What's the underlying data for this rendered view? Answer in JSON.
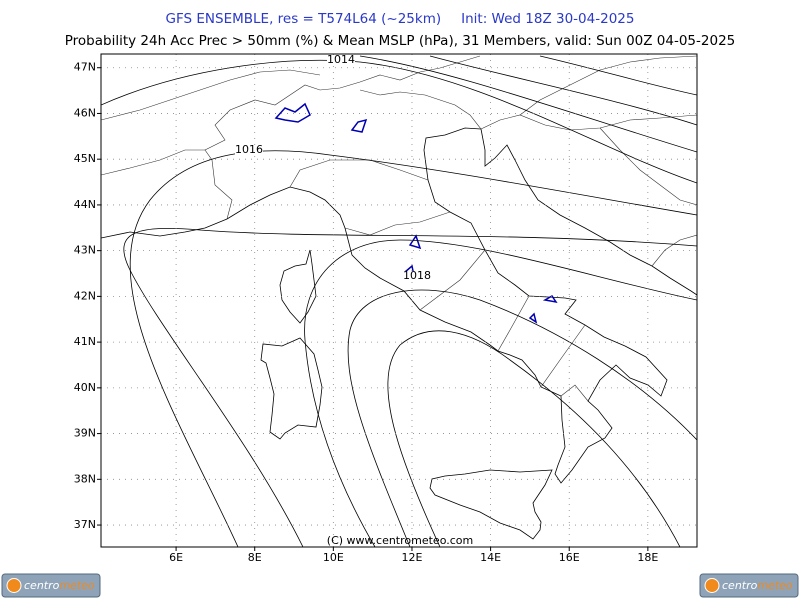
{
  "header": {
    "model": "GFS ENSEMBLE, res = T574L64 (~25km)",
    "init": "Init: Wed 18Z 30-04-2025",
    "subtitle": "Probability 24h Acc Prec > 50mm (%) & Mean MSLP (hPa), 31 Members, valid: Sun 00Z 04-05-2025"
  },
  "map": {
    "xlim": [
      4.09,
      19.25
    ],
    "ylim": [
      36.52,
      47.3
    ],
    "grid": true,
    "lon_ticks": [
      {
        "value": 6,
        "label": "6E"
      },
      {
        "value": 8,
        "label": "8E"
      },
      {
        "value": 10,
        "label": "10E"
      },
      {
        "value": 12,
        "label": "12E"
      },
      {
        "value": 14,
        "label": "14E"
      },
      {
        "value": 16,
        "label": "16E"
      },
      {
        "value": 18,
        "label": "18E"
      }
    ],
    "lat_ticks": [
      {
        "value": 37,
        "label": "37N"
      },
      {
        "value": 38,
        "label": "38N"
      },
      {
        "value": 39,
        "label": "39N"
      },
      {
        "value": 40,
        "label": "40N"
      },
      {
        "value": 41,
        "label": "41N"
      },
      {
        "value": 42,
        "label": "42N"
      },
      {
        "value": 43,
        "label": "43N"
      },
      {
        "value": 44,
        "label": "44N"
      },
      {
        "value": 45,
        "label": "45N"
      },
      {
        "value": 46,
        "label": "46N"
      },
      {
        "value": 47,
        "label": "47N"
      }
    ],
    "isobar_labels": [
      "1014",
      "1016",
      "1018"
    ],
    "watermark": "(C) www.centrometeo.com"
  },
  "logos": [
    {
      "part_a": "centro",
      "part_b": "meteo"
    },
    {
      "part_a": "centro",
      "part_b": "meteo"
    }
  ]
}
